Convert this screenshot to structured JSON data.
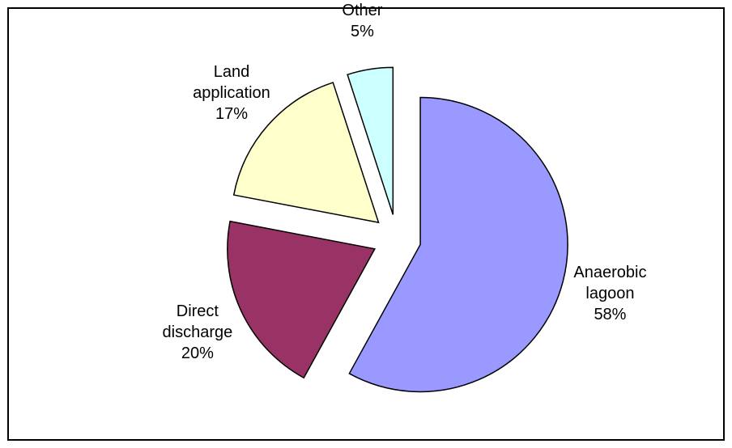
{
  "chart_data": {
    "type": "pie",
    "categories": [
      "Anaerobic lagoon",
      "Direct discharge",
      "Land application",
      "Other"
    ],
    "values": [
      58,
      20,
      17,
      5
    ],
    "value_labels": [
      "58%",
      "20%",
      "17%",
      "5%"
    ],
    "colors": [
      "#9999ff",
      "#993366",
      "#ffffcc",
      "#ccffff"
    ]
  }
}
